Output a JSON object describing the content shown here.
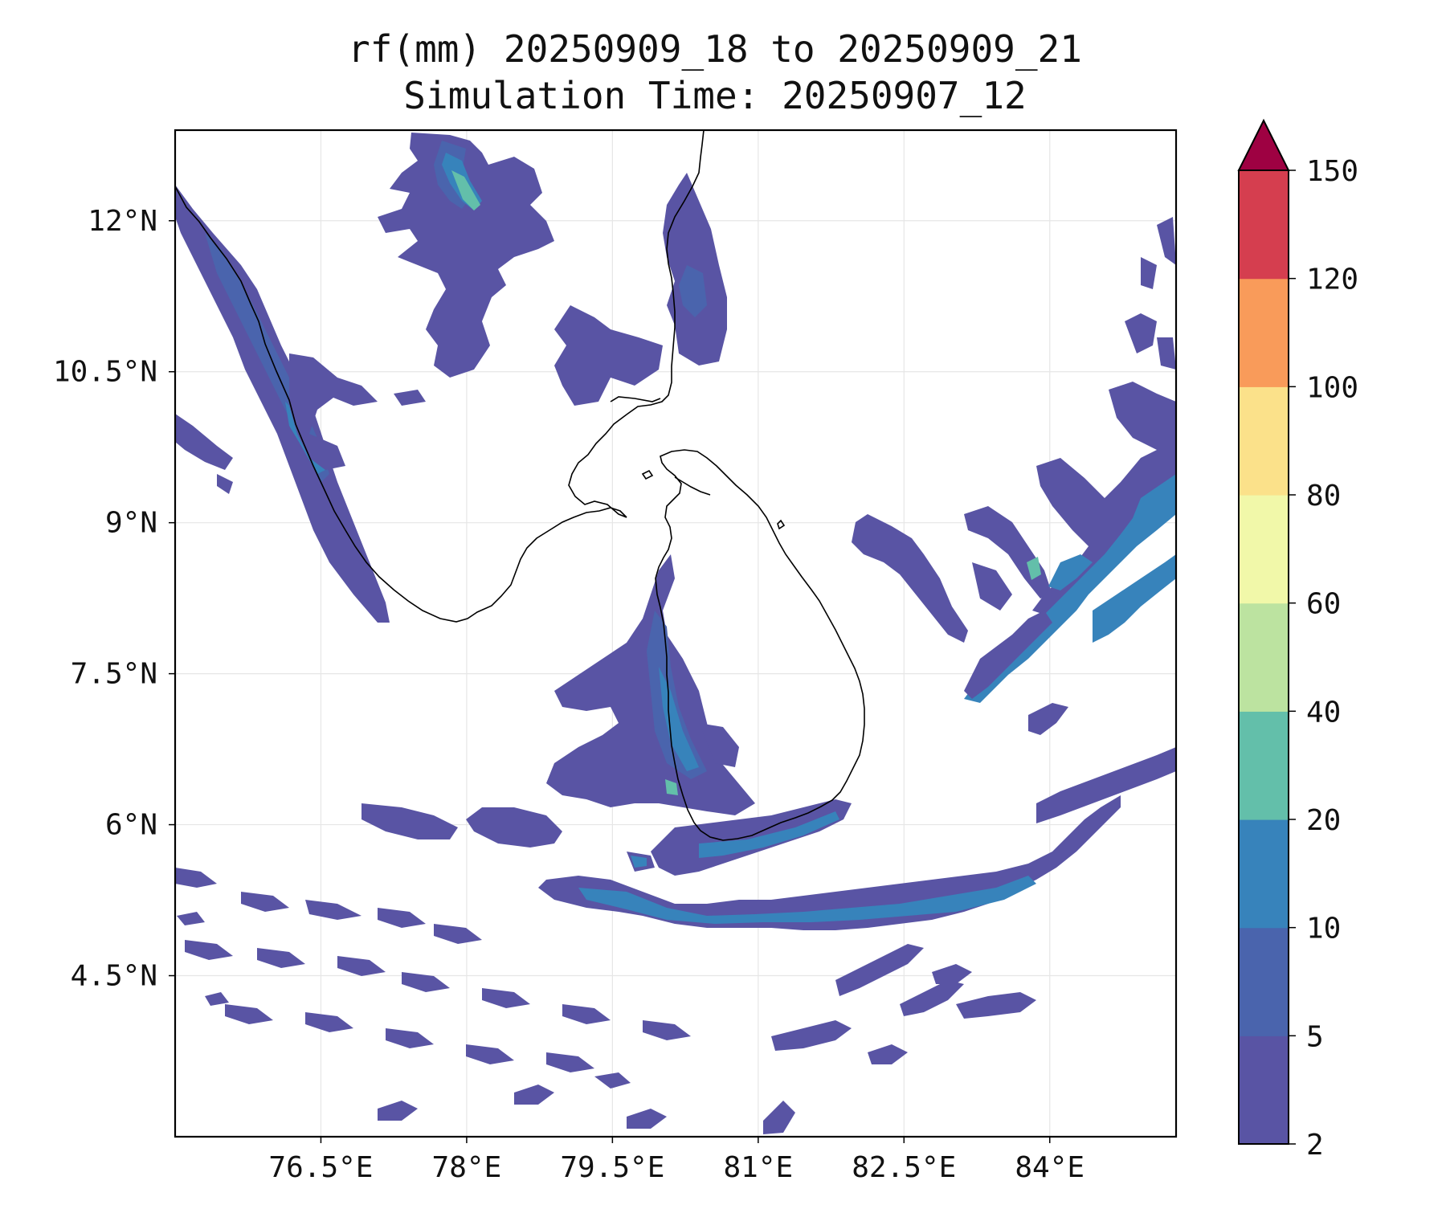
{
  "figure": {
    "title_line1": "rf(mm) 20250909_18 to 20250909_21",
    "title_line2": "Simulation Time: 20250907_12"
  },
  "map": {
    "variable": "rf",
    "units": "mm",
    "lon_range": [
      75.0,
      85.3
    ],
    "lat_range": [
      2.9,
      12.9
    ],
    "x_tick_values": [
      76.5,
      78.0,
      79.5,
      81.0,
      82.5,
      84.0
    ],
    "x_tick_labels": [
      "76.5°E",
      "78°E",
      "79.5°E",
      "81°E",
      "82.5°E",
      "84°E"
    ],
    "y_tick_values": [
      12.0,
      10.5,
      9.0,
      7.5,
      6.0,
      4.5
    ],
    "y_tick_labels": [
      "12°N",
      "10.5°N",
      "9°N",
      "7.5°N",
      "6°N",
      "4.5°N"
    ],
    "gridlines": true,
    "coastline_color": "#000000"
  },
  "colorbar": {
    "levels": [
      2,
      5,
      10,
      20,
      40,
      60,
      80,
      100,
      120,
      150
    ],
    "tick_labels": [
      "2",
      "5",
      "10",
      "20",
      "40",
      "60",
      "80",
      "100",
      "120",
      "150"
    ],
    "colors": [
      "#5954a4",
      "#4a64ad",
      "#3783bb",
      "#63bfaa",
      "#bce3a0",
      "#f1f8a9",
      "#fbe18a",
      "#f99b5a",
      "#d53e4f"
    ],
    "extend_color": "#9e0142",
    "extend": "max"
  },
  "rain_colors": {
    "c2": "#5954a4",
    "c5": "#4a64ad",
    "c10": "#3783bb",
    "c20": "#63bfaa",
    "c40": "#bce3a0"
  }
}
